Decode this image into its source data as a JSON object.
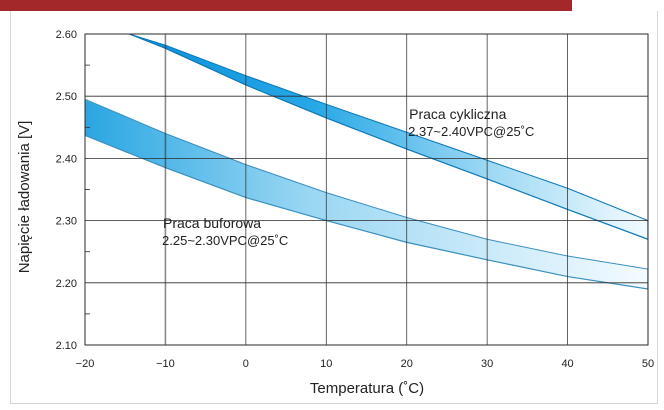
{
  "colors": {
    "header_bar": "#a3282a",
    "cyclic_band_dark": "#0a8fd8",
    "cyclic_band_light": "#e6f6fd",
    "float_band_dark": "#4ab8e8",
    "float_band_light": "#eef9fe",
    "grid": "#2a2a2a"
  },
  "chart_data": {
    "type": "area",
    "title": "",
    "xlabel": "Temperatura (˚C)",
    "ylabel": "Napięcie ładowania [V]",
    "xlim": [
      -20,
      50
    ],
    "ylim": [
      2.1,
      2.6
    ],
    "grid": true,
    "x_ticks": [
      -20,
      -10,
      0,
      10,
      20,
      30,
      40,
      50
    ],
    "x_tick_labels": [
      "−20",
      "−10",
      "0",
      "10",
      "20",
      "30",
      "40",
      "50"
    ],
    "y_ticks": [
      2.1,
      2.2,
      2.3,
      2.4,
      2.5,
      2.6
    ],
    "y_tick_labels": [
      "2.10",
      "2.20",
      "2.30",
      "2.40",
      "2.50",
      "2.60"
    ],
    "series": [
      {
        "name": "Praca cykliczna",
        "x": [
          -14.5,
          -10,
          0,
          10,
          20,
          30,
          40,
          50
        ],
        "upper": [
          2.6,
          2.582,
          2.533,
          2.487,
          2.442,
          2.397,
          2.352,
          2.3
        ],
        "lower": [
          2.6,
          2.577,
          2.518,
          2.465,
          2.415,
          2.367,
          2.318,
          2.27
        ]
      },
      {
        "name": "Praca buforowa",
        "x": [
          -20,
          -10,
          0,
          10,
          20,
          30,
          40,
          50
        ],
        "upper": [
          2.495,
          2.44,
          2.39,
          2.345,
          2.305,
          2.27,
          2.243,
          2.222
        ],
        "lower": [
          2.437,
          2.385,
          2.337,
          2.3,
          2.265,
          2.237,
          2.21,
          2.19
        ]
      }
    ],
    "annotations": [
      {
        "name": "Praca cykliczna",
        "line1": "Praca cykliczna",
        "line2": "2.37~2.40VPC@25˚C",
        "x": 20.3,
        "y": 2.436
      },
      {
        "name": "Praca buforowa",
        "line1": "Praca buforowa",
        "line2": "2.25~2.30VPC@25˚C",
        "x": -10.3,
        "y": 2.261
      }
    ]
  }
}
